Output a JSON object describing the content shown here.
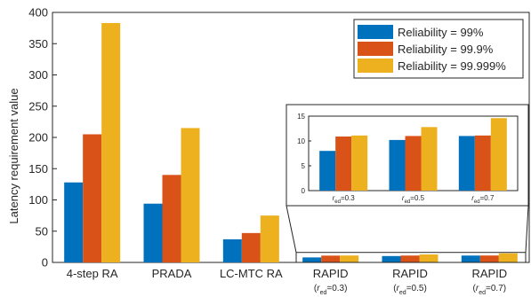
{
  "chart_data": [
    {
      "type": "bar",
      "ylabel": "Latency requirement value",
      "ylim": [
        0,
        400
      ],
      "yticks": [
        "0",
        "50",
        "100",
        "150",
        "200",
        "250",
        "300",
        "350",
        "400"
      ],
      "grid": false,
      "legend_position": "top-right",
      "categories": [
        {
          "label": "4-step RA"
        },
        {
          "label": "PRADA"
        },
        {
          "label": "LC-MTC RA"
        },
        {
          "label": "RAPID",
          "sub_prefix": "(",
          "sub_r": "r",
          "sub_sub": "ed",
          "sub_suffix": "=0.3)"
        },
        {
          "label": "RAPID",
          "sub_prefix": "(",
          "sub_r": "r",
          "sub_sub": "ed",
          "sub_suffix": "=0.5)"
        },
        {
          "label": "RAPID",
          "sub_prefix": "(",
          "sub_r": "r",
          "sub_sub": "ed",
          "sub_suffix": "=0.7)"
        }
      ],
      "series": [
        {
          "name": "Reliability = 99%",
          "color": "#0072BD",
          "values": [
            128,
            94,
            37,
            8,
            10.2,
            11
          ]
        },
        {
          "name": "Reliability = 99.9%",
          "color": "#D95319",
          "values": [
            205,
            140,
            47,
            10.9,
            11,
            11.1
          ]
        },
        {
          "name": "Reliability = 99.999%",
          "color": "#EDB120",
          "values": [
            383,
            215,
            75,
            11.1,
            12.8,
            14.6
          ]
        }
      ]
    },
    {
      "type": "bar",
      "inset": true,
      "ylim": [
        0,
        15
      ],
      "yticks": [
        "0",
        "5",
        "10",
        "15"
      ],
      "categories": [
        {
          "r": "r",
          "sub": "ed",
          "suffix": "=0.3"
        },
        {
          "r": "r",
          "sub": "ed",
          "suffix": "=0.5"
        },
        {
          "r": "r",
          "sub": "ed",
          "suffix": "=0.7"
        }
      ],
      "series": [
        {
          "color": "#0072BD",
          "values": [
            8,
            10.2,
            11
          ]
        },
        {
          "color": "#D95319",
          "values": [
            10.9,
            11,
            11.1
          ]
        },
        {
          "color": "#EDB120",
          "values": [
            11.1,
            12.8,
            14.6
          ]
        }
      ]
    }
  ]
}
